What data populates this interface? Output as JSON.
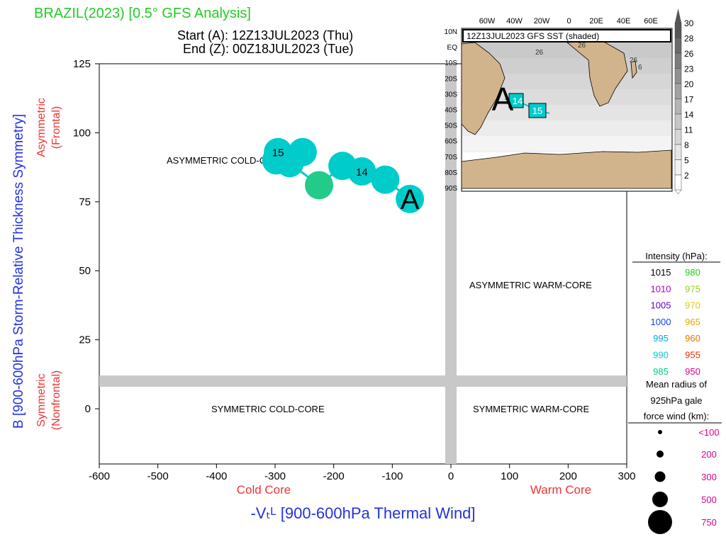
{
  "header": {
    "title": "BRAZIL(2023) [0.5° GFS Analysis]",
    "start": "Start (A): 12Z13JUL2023 (Thu)",
    "end": "End (Z): 00Z18JUL2023 (Tue)"
  },
  "axes": {
    "xlabel": "-Vₜᴸ [900-600hPa Thermal Wind]",
    "ylabel": "B [900-600hPa Storm-Relative Thickness Symmetry]",
    "x_left_note": "Cold Core",
    "x_right_note": "Warm Core",
    "y_top_note_1": "Asymmetric",
    "y_top_note_2": "(Frontal)",
    "y_bottom_note_1": "Symmetric",
    "y_bottom_note_2": "(Nonfrontal)"
  },
  "quadrants": {
    "asym_cold": "ASYMMETRIC COLD-CORE",
    "asym_warm": "ASYMMETRIC WARM-CORE",
    "sym_cold": "SYMMETRIC COLD-CORE",
    "sym_warm": "SYMMETRIC WARM-CORE"
  },
  "chart_data": {
    "type": "scatter",
    "xlim": [
      -600,
      300
    ],
    "ylim": [
      -20,
      125
    ],
    "x_ticks": [
      -600,
      -500,
      -400,
      -300,
      -200,
      -100,
      0,
      100,
      200,
      300
    ],
    "y_ticks": [
      0,
      25,
      50,
      75,
      100,
      125
    ],
    "points": [
      {
        "x": -70,
        "y": 76,
        "label": "A",
        "color": "#00cccc"
      },
      {
        "x": -112,
        "y": 83,
        "label": "",
        "color": "#00cccc"
      },
      {
        "x": -152,
        "y": 86,
        "label": "14",
        "color": "#00cccc"
      },
      {
        "x": -185,
        "y": 88,
        "label": "",
        "color": "#00cccc"
      },
      {
        "x": -225,
        "y": 81,
        "label": "",
        "color": "#22cc88"
      },
      {
        "x": -275,
        "y": 89,
        "label": "",
        "color": "#00cccc"
      },
      {
        "x": -298,
        "y": 90,
        "label": "",
        "color": "#00cccc"
      },
      {
        "x": -295,
        "y": 93,
        "label": "15",
        "color": "#00cccc"
      },
      {
        "x": -253,
        "y": 93,
        "label": "",
        "color": "#00cccc"
      }
    ]
  },
  "inset": {
    "title": "12Z13JUL2023 GFS SST (shaded)",
    "lon_labels": [
      "60W",
      "40W",
      "20W",
      "0",
      "20E",
      "40E",
      "60E"
    ],
    "lat_labels": [
      "10N",
      "EQ",
      "10S",
      "20S",
      "30S",
      "40S",
      "50S",
      "60S",
      "70S",
      "80S",
      "90S"
    ],
    "colorbar": [
      "30",
      "28",
      "26",
      "23",
      "20",
      "17",
      "14",
      "11",
      "8",
      "5",
      "2"
    ],
    "contour_labels": [
      "26",
      "26",
      "26",
      "6"
    ],
    "track_labels": [
      "A",
      "14",
      "15"
    ]
  },
  "legend": {
    "intensity_title": "Intensity (hPa):",
    "intensity_left": [
      {
        "v": "1015",
        "c": "#000000"
      },
      {
        "v": "1010",
        "c": "#aa00cc"
      },
      {
        "v": "1005",
        "c": "#6600cc"
      },
      {
        "v": "1000",
        "c": "#1144ee"
      },
      {
        "v": "995",
        "c": "#00aadd"
      },
      {
        "v": "990",
        "c": "#00cccc"
      },
      {
        "v": "985",
        "c": "#00cc88"
      }
    ],
    "intensity_right": [
      {
        "v": "980",
        "c": "#22cc22"
      },
      {
        "v": "975",
        "c": "#99cc22"
      },
      {
        "v": "970",
        "c": "#ddcc00"
      },
      {
        "v": "965",
        "c": "#ddaa00"
      },
      {
        "v": "960",
        "c": "#dd7700"
      },
      {
        "v": "955",
        "c": "#dd3300"
      },
      {
        "v": "950",
        "c": "#dd0088"
      }
    ],
    "radius_title_1": "Mean radius of",
    "radius_title_2": "925hPa gale",
    "radius_title_3": "force wind (km):",
    "radius_items": [
      "<100",
      "200",
      "300",
      "500",
      "750"
    ]
  }
}
